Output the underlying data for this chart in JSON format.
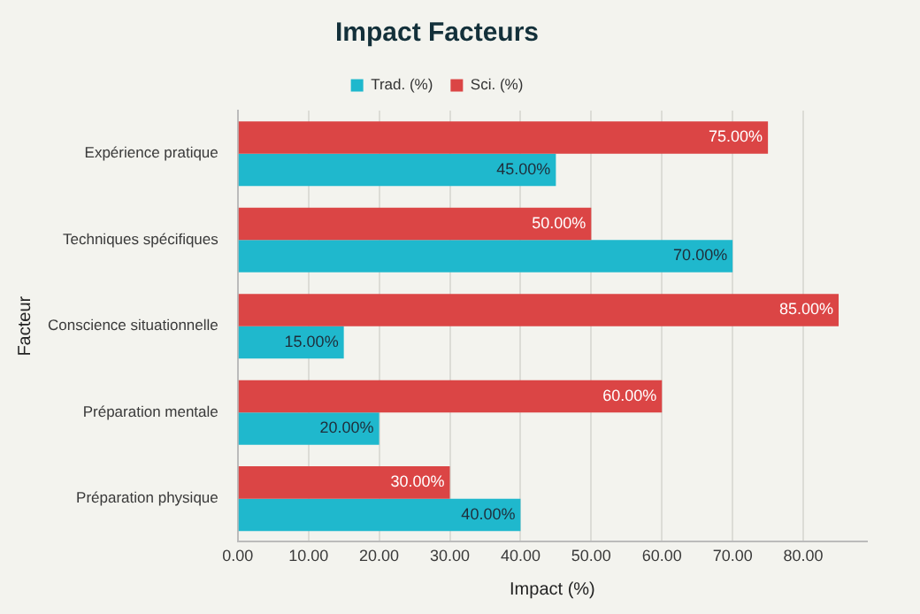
{
  "chart_data": {
    "type": "bar",
    "orientation": "horizontal",
    "title": "Impact Facteurs",
    "xlabel": "Impact (%)",
    "ylabel": "Facteur",
    "categories": [
      "Expérience pratique",
      "Techniques spécifiques",
      "Conscience situationnelle",
      "Préparation mentale",
      "Préparation physique"
    ],
    "series": [
      {
        "name": "Trad. (%)",
        "color": "#1fb8cd",
        "values": [
          45,
          70,
          15,
          20,
          40
        ],
        "value_labels": [
          "45.00%",
          "70.00%",
          "15.00%",
          "20.00%",
          "40.00%"
        ]
      },
      {
        "name": "Sci. (%)",
        "color": "#db4545",
        "values": [
          75,
          50,
          85,
          60,
          30
        ],
        "value_labels": [
          "75.00%",
          "50.00%",
          "85.00%",
          "60.00%",
          "30.00%"
        ]
      }
    ],
    "xlim": [
      0,
      89
    ],
    "xticks": [
      {
        "value": 0,
        "label": "0.00"
      },
      {
        "value": 10,
        "label": "10.00"
      },
      {
        "value": 20,
        "label": "20.00"
      },
      {
        "value": 30,
        "label": "30.00"
      },
      {
        "value": 40,
        "label": "40.00"
      },
      {
        "value": 50,
        "label": "50.00"
      },
      {
        "value": 60,
        "label": "60.00"
      },
      {
        "value": 70,
        "label": "70.00"
      },
      {
        "value": 80,
        "label": "80.00"
      }
    ],
    "grid": "x",
    "legend": "top"
  }
}
